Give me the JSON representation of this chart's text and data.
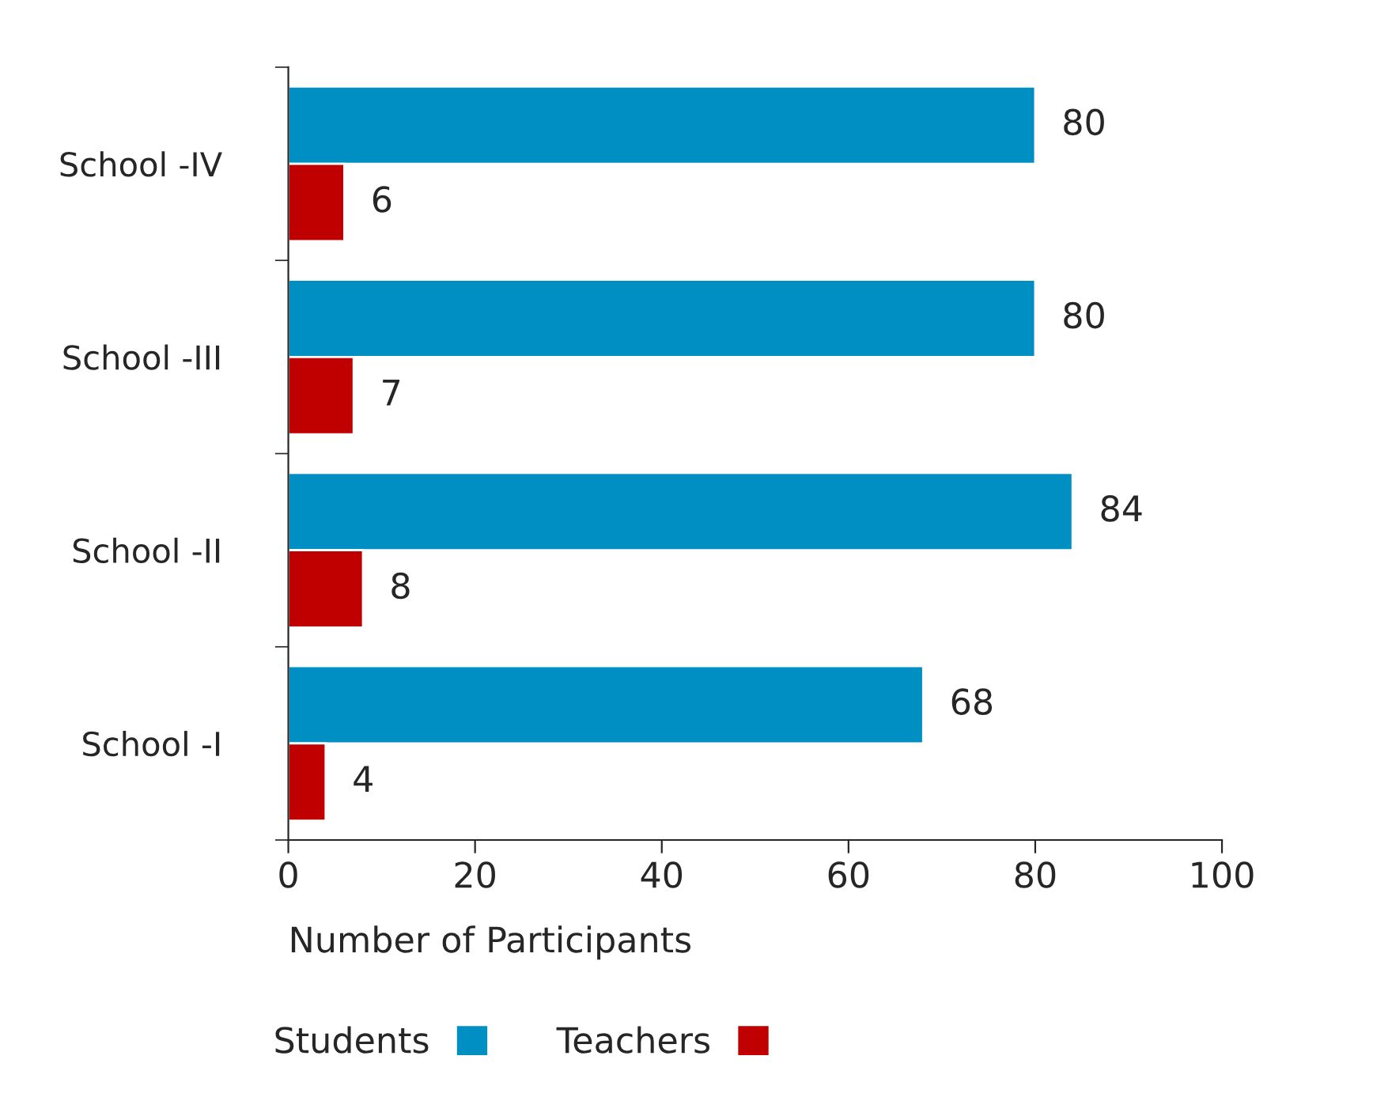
{
  "chart_data": {
    "type": "bar",
    "orientation": "horizontal",
    "xlabel": "Number of Participants",
    "categories": [
      "School -IV",
      "School -III",
      "School -II",
      "School -I"
    ],
    "series": [
      {
        "name": "Students",
        "color": "#008fc3",
        "values": [
          80,
          80,
          84,
          68
        ]
      },
      {
        "name": "Teachers",
        "color": "#c00000",
        "values": [
          6,
          7,
          8,
          4
        ]
      }
    ],
    "xlim": [
      0,
      100
    ],
    "xticks": [
      0,
      20,
      40,
      60,
      80,
      100
    ],
    "grid": false,
    "legend": "bottom",
    "data_labels": true
  }
}
